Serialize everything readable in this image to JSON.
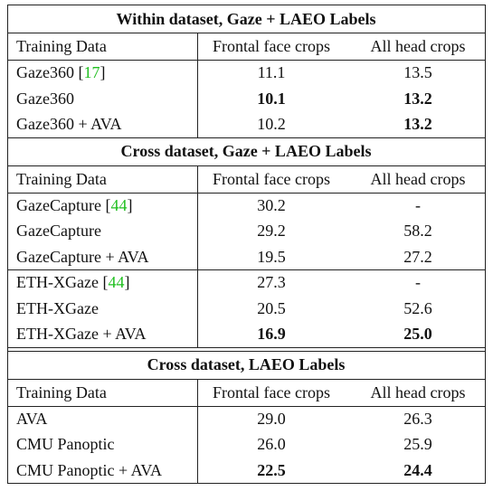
{
  "sections": [
    {
      "title": "Within dataset, Gaze + LAEO Labels",
      "header": [
        "Training Data",
        "Frontal face crops",
        "All head crops"
      ],
      "groups": [
        [
          {
            "cells": [
              {
                "parts": [
                  "Gaze360 [",
                  "17",
                  "]"
                ]
              },
              {
                "parts": [
                  "11.1"
                ]
              },
              {
                "parts": [
                  "13.5"
                ]
              }
            ],
            "bold": [
              false,
              false,
              false
            ]
          },
          {
            "cells": [
              {
                "parts": [
                  "Gaze360"
                ]
              },
              {
                "parts": [
                  "10.1"
                ]
              },
              {
                "parts": [
                  "13.2"
                ]
              }
            ],
            "bold": [
              false,
              true,
              true
            ]
          },
          {
            "cells": [
              {
                "parts": [
                  "Gaze360 + AVA"
                ]
              },
              {
                "parts": [
                  "10.2"
                ]
              },
              {
                "parts": [
                  "13.2"
                ]
              }
            ],
            "bold": [
              false,
              false,
              true
            ]
          }
        ]
      ]
    },
    {
      "title": "Cross dataset, Gaze + LAEO Labels",
      "header": [
        "Training Data",
        "Frontal face crops",
        "All head crops"
      ],
      "groups": [
        [
          {
            "cells": [
              {
                "parts": [
                  "GazeCapture [",
                  "44",
                  "]"
                ]
              },
              {
                "parts": [
                  "30.2"
                ]
              },
              {
                "parts": [
                  "-"
                ]
              }
            ],
            "bold": [
              false,
              false,
              false
            ]
          },
          {
            "cells": [
              {
                "parts": [
                  "GazeCapture"
                ]
              },
              {
                "parts": [
                  "29.2"
                ]
              },
              {
                "parts": [
                  "58.2"
                ]
              }
            ],
            "bold": [
              false,
              false,
              false
            ]
          },
          {
            "cells": [
              {
                "parts": [
                  "GazeCapture + AVA"
                ]
              },
              {
                "parts": [
                  "19.5"
                ]
              },
              {
                "parts": [
                  "27.2"
                ]
              }
            ],
            "bold": [
              false,
              false,
              false
            ]
          }
        ],
        [
          {
            "cells": [
              {
                "parts": [
                  "ETH-XGaze [",
                  "44",
                  "]"
                ]
              },
              {
                "parts": [
                  "27.3"
                ]
              },
              {
                "parts": [
                  "-"
                ]
              }
            ],
            "bold": [
              false,
              false,
              false
            ]
          },
          {
            "cells": [
              {
                "parts": [
                  "ETH-XGaze"
                ]
              },
              {
                "parts": [
                  "20.5"
                ]
              },
              {
                "parts": [
                  "52.6"
                ]
              }
            ],
            "bold": [
              false,
              false,
              false
            ]
          },
          {
            "cells": [
              {
                "parts": [
                  "ETH-XGaze + AVA"
                ]
              },
              {
                "parts": [
                  "16.9"
                ]
              },
              {
                "parts": [
                  "25.0"
                ]
              }
            ],
            "bold": [
              false,
              true,
              true
            ]
          }
        ]
      ]
    },
    {
      "title": "Cross dataset, LAEO Labels",
      "header": [
        "Training Data",
        "Frontal face crops",
        "All head crops"
      ],
      "groups": [
        [
          {
            "cells": [
              {
                "parts": [
                  "AVA"
                ]
              },
              {
                "parts": [
                  "29.0"
                ]
              },
              {
                "parts": [
                  "26.3"
                ]
              }
            ],
            "bold": [
              false,
              false,
              false
            ]
          },
          {
            "cells": [
              {
                "parts": [
                  "CMU Panoptic"
                ]
              },
              {
                "parts": [
                  "26.0"
                ]
              },
              {
                "parts": [
                  "25.9"
                ]
              }
            ],
            "bold": [
              false,
              false,
              false
            ]
          },
          {
            "cells": [
              {
                "parts": [
                  "CMU Panoptic + AVA"
                ]
              },
              {
                "parts": [
                  "22.5"
                ]
              },
              {
                "parts": [
                  "24.4"
                ]
              }
            ],
            "bold": [
              false,
              true,
              true
            ]
          }
        ]
      ]
    }
  ]
}
